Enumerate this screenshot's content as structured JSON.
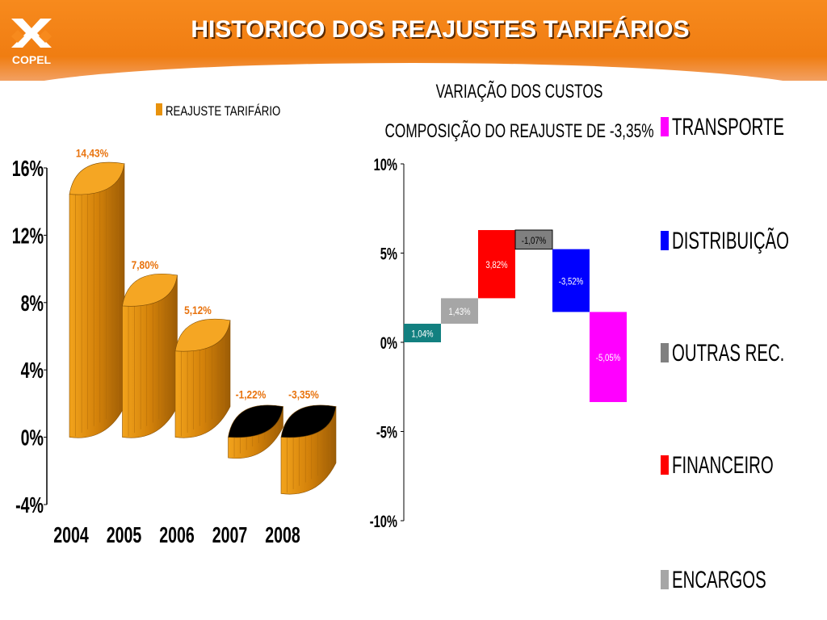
{
  "header": {
    "title": "HISTORICO DOS REAJUSTES TARIFÁRIOS",
    "logo_text": "COPEL"
  },
  "colors": {
    "header_orange": "#f58220",
    "bar_orange": "#e8920c",
    "label_orange": "#e8720c",
    "transporte": "#ff00ff",
    "distribuicao": "#0000ff",
    "outras_rec": "#808080",
    "financeiro": "#ff0000",
    "encargos": "#a6a6a6",
    "teal": "#128080"
  },
  "chart_data": [
    {
      "type": "bar",
      "legend_label": "REAJUSTE TARIFÁRIO",
      "categories": [
        "2004",
        "2005",
        "2006",
        "2007",
        "2008"
      ],
      "values": [
        14.43,
        7.8,
        5.12,
        -1.22,
        -3.35
      ],
      "data_labels": [
        "14,43%",
        "7,80%",
        "5,12%",
        "-1,22%",
        "-3,35%"
      ],
      "ylim": [
        -4,
        16
      ],
      "yticks": [
        16,
        12,
        8,
        4,
        0,
        -4
      ],
      "ytick_labels": [
        "16%",
        "12%",
        "8%",
        "4%",
        "0%",
        "-4%"
      ],
      "xlabel": "",
      "ylabel": ""
    },
    {
      "type": "waterfall",
      "title_line1": "VARIAÇÃO DOS CUSTOS",
      "title_line2": "COMPOSIÇÃO DO REAJUSTE DE -3,35%",
      "steps": [
        {
          "value": 1.04,
          "label": "1,04%",
          "color": "#128080"
        },
        {
          "value": 1.43,
          "label": "1,43%",
          "color": "#a6a6a6"
        },
        {
          "value": 3.82,
          "label": "3,82%",
          "color": "#ff0000"
        },
        {
          "value": -1.07,
          "label": "-1,07%",
          "color": "#808080"
        },
        {
          "value": -3.52,
          "label": "-3,52%",
          "color": "#0000ff"
        },
        {
          "value": -5.05,
          "label": "-5,05%",
          "color": "#ff00ff"
        }
      ],
      "ylim": [
        -10,
        10
      ],
      "yticks": [
        10,
        5,
        0,
        -5,
        -10
      ],
      "ytick_labels": [
        "10%",
        "5%",
        "0%",
        "-5%",
        "-10%"
      ],
      "legend": [
        {
          "label": "TRANSPORTE",
          "color": "#ff00ff"
        },
        {
          "label": "DISTRIBUIÇÃO",
          "color": "#0000ff"
        },
        {
          "label": "OUTRAS REC.",
          "color": "#808080"
        },
        {
          "label": "FINANCEIRO",
          "color": "#ff0000"
        },
        {
          "label": "ENCARGOS",
          "color": "#a6a6a6"
        }
      ]
    }
  ]
}
